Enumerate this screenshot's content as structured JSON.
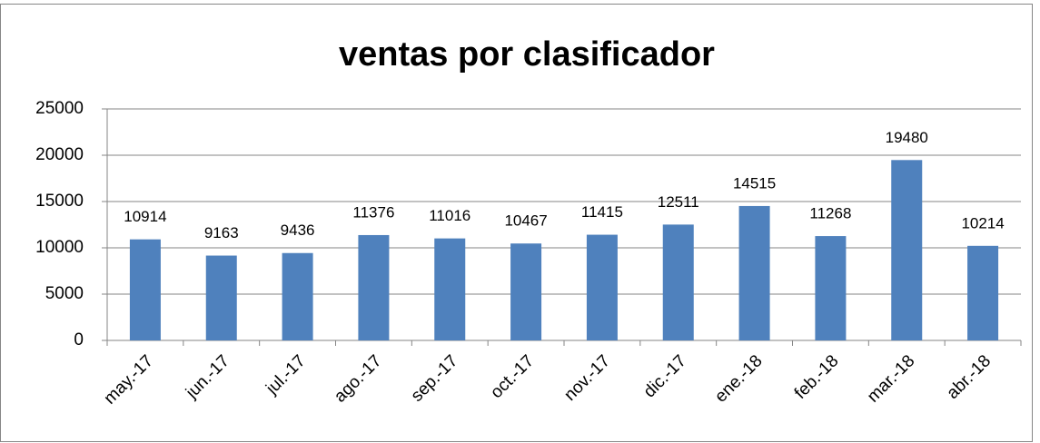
{
  "chart_data": {
    "type": "bar",
    "title": "ventas por clasificador",
    "categories": [
      "may.-17",
      "jun.-17",
      "jul.-17",
      "ago.-17",
      "sep.-17",
      "oct.-17",
      "nov.-17",
      "dic.-17",
      "ene.-18",
      "feb.-18",
      "mar.-18",
      "abr.-18"
    ],
    "values": [
      10914,
      9163,
      9436,
      11376,
      11016,
      10467,
      11415,
      12511,
      14515,
      11268,
      19480,
      10214
    ],
    "color": "#4f81bd",
    "ylim": [
      0,
      25000
    ],
    "yticks": [
      0,
      5000,
      10000,
      15000,
      20000,
      25000
    ],
    "grid": true
  }
}
